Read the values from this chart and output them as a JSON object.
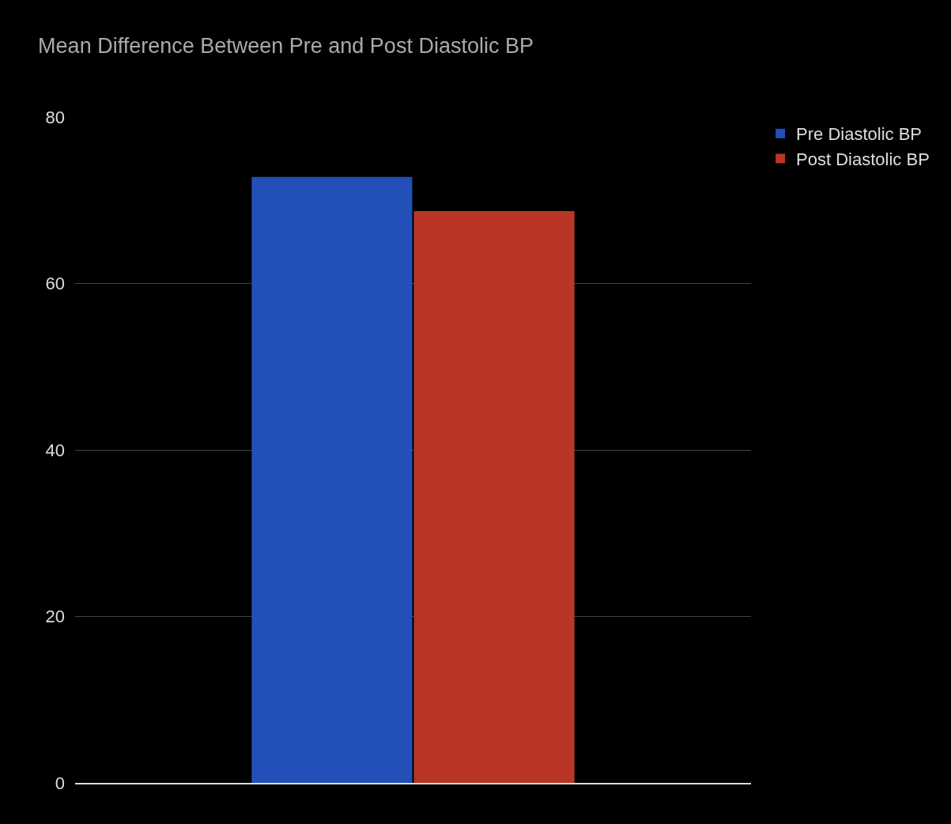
{
  "chart_data": {
    "type": "bar",
    "title": "Mean Difference Between Pre and Post Diastolic BP",
    "categories": [
      null
    ],
    "series": [
      {
        "name": "Pre Diastolic BP",
        "color": "#224fb8",
        "values": [
          72.8
        ]
      },
      {
        "name": "Post Diastolic BP",
        "color": "#b93627",
        "values": [
          68.7
        ]
      }
    ],
    "ylim": [
      0,
      80
    ],
    "yticks": [
      0,
      20,
      40,
      60,
      80
    ],
    "grid": "y",
    "legend": "top right"
  }
}
